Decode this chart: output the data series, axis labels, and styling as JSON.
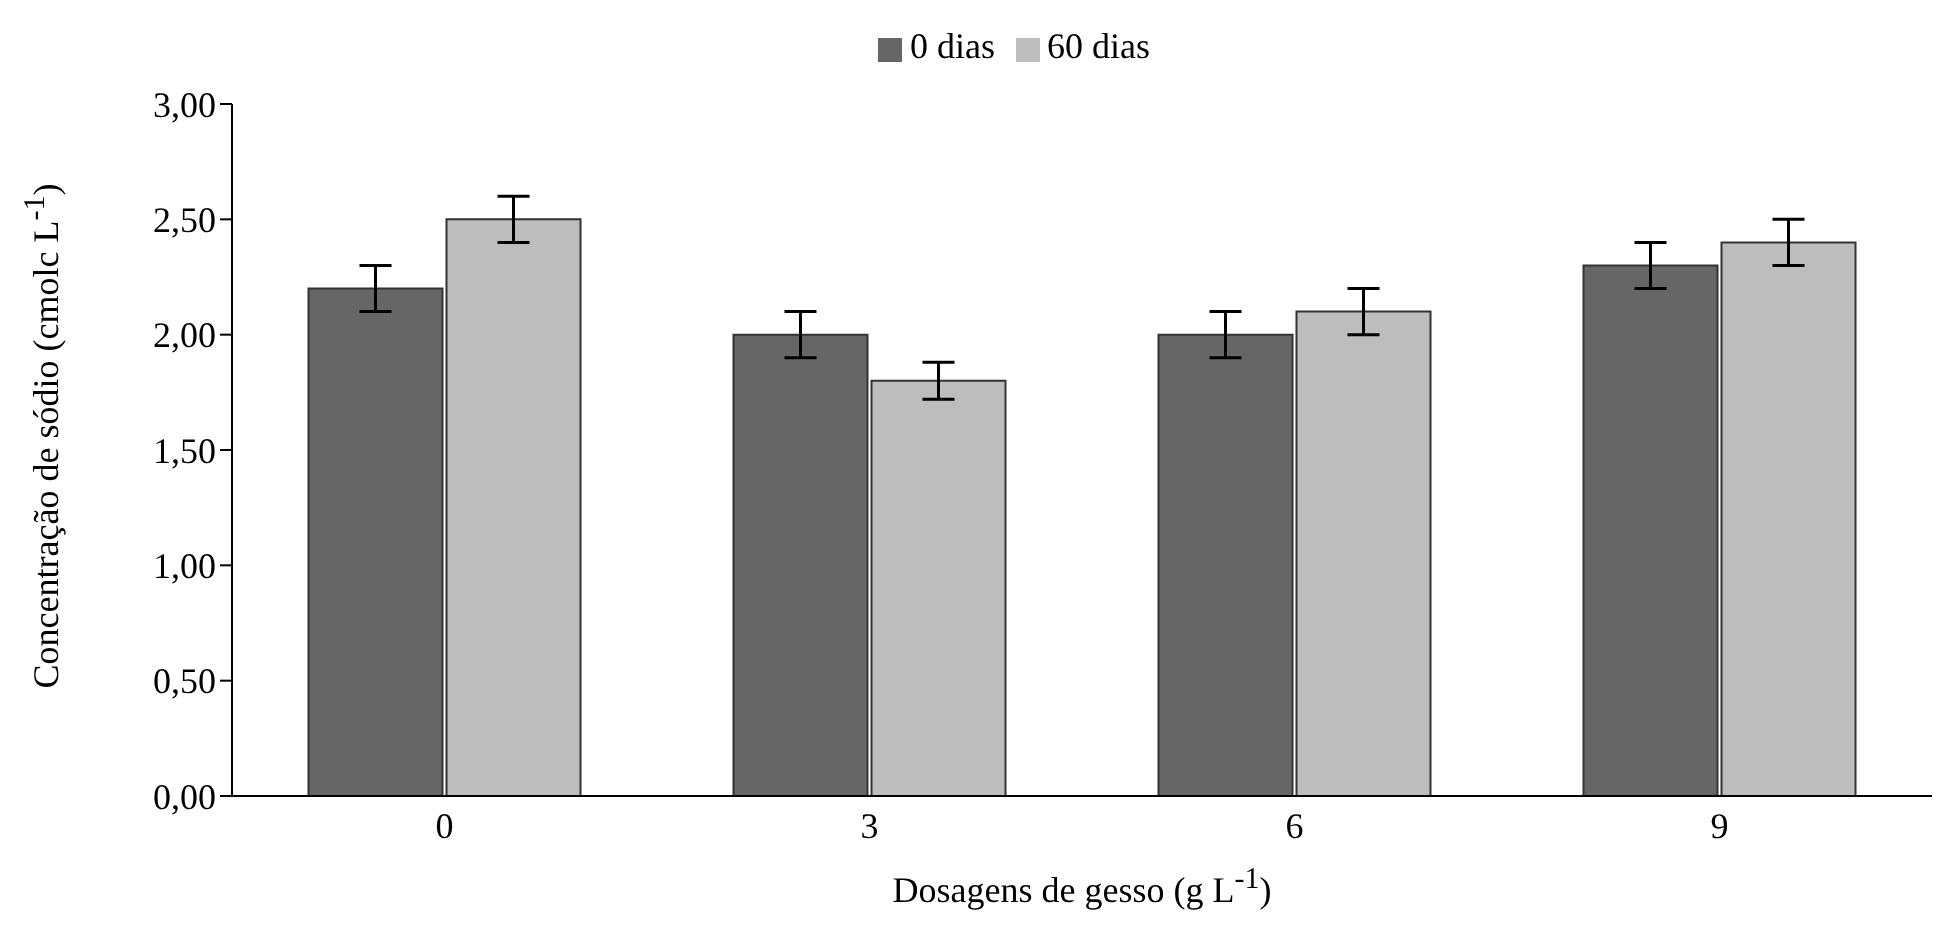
{
  "chart_data": {
    "type": "bar",
    "xlabel": "Dosagens de gesso (g L$^{-1}$)",
    "ylabel": "Concentração de sódio (cmolc L$^{-1}$)",
    "categories": [
      "0",
      "3",
      "6",
      "9"
    ],
    "series": [
      {
        "name": "0 dias",
        "color": "#666666",
        "values": [
          2.2,
          2.0,
          2.0,
          2.3
        ],
        "errors": [
          0.1,
          0.1,
          0.1,
          0.1
        ]
      },
      {
        "name": "60 dias",
        "color": "#bdbdbd",
        "values": [
          2.5,
          1.8,
          2.1,
          2.4
        ],
        "errors": [
          0.1,
          0.08,
          0.1,
          0.1
        ]
      }
    ],
    "ylim": [
      0,
      3
    ],
    "yticks": [
      {
        "value": 0,
        "label": "0,00"
      },
      {
        "value": 0.5,
        "label": "0,50"
      },
      {
        "value": 1,
        "label": "1,00"
      },
      {
        "value": 1.5,
        "label": "1,50"
      },
      {
        "value": 2,
        "label": "2,00"
      },
      {
        "value": 2.5,
        "label": "2,50"
      },
      {
        "value": 3,
        "label": "3,00"
      }
    ],
    "grid": false,
    "legend": "top"
  }
}
